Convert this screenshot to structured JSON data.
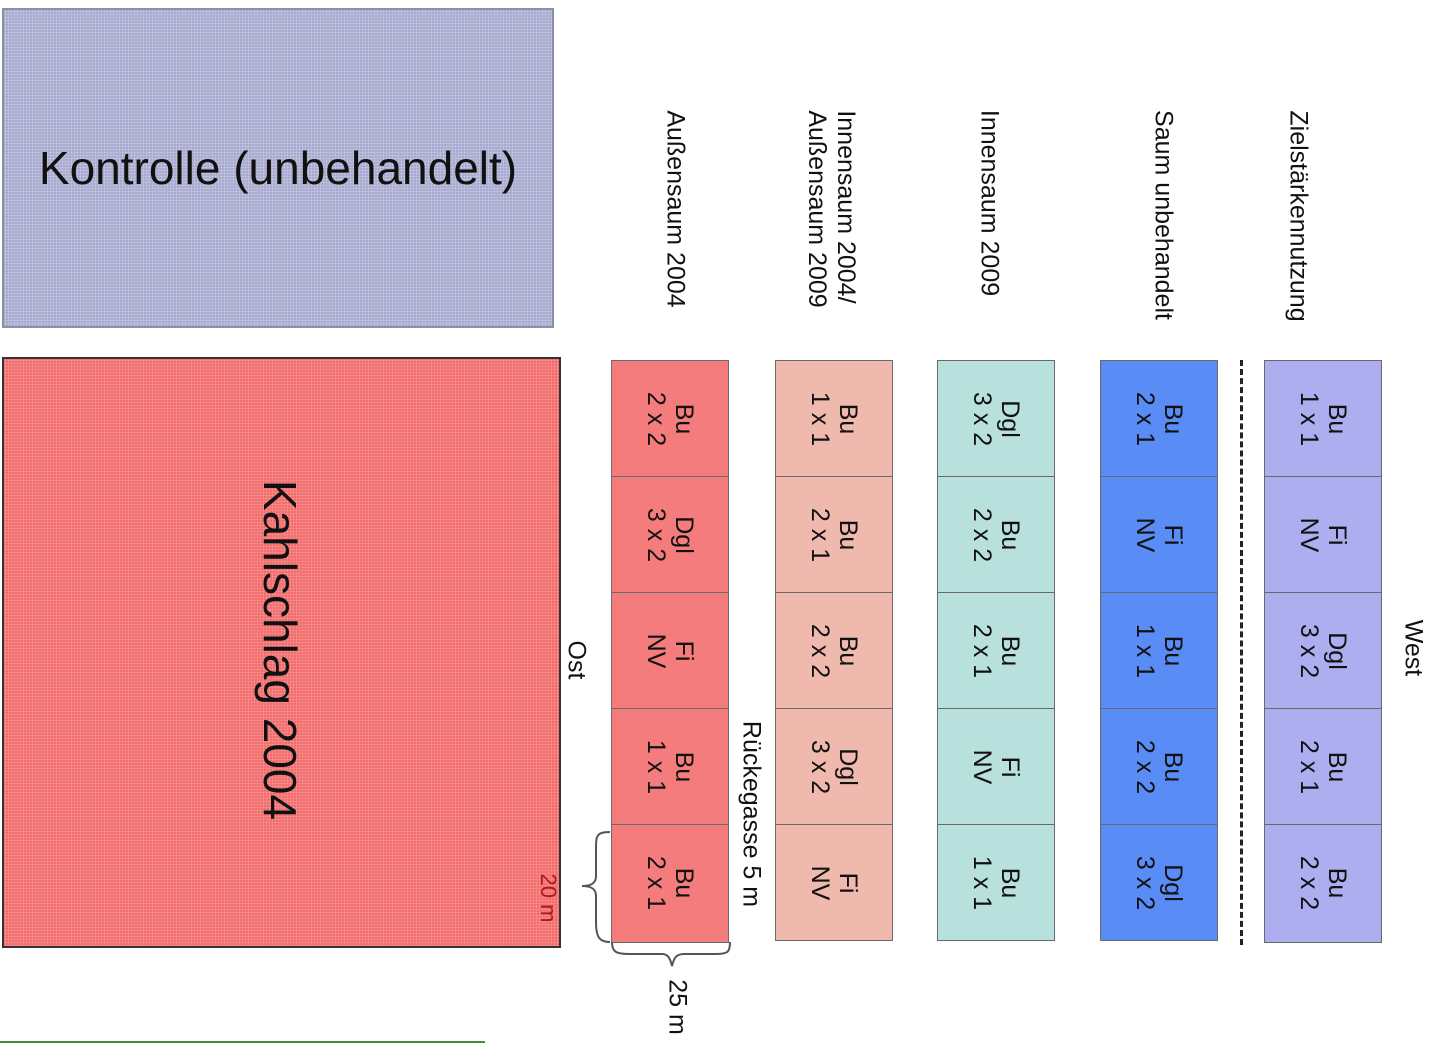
{
  "regions": {
    "kontrolle": "Kontrolle (unbehandelt)",
    "kahlschlag": "Kahlschlag 2004"
  },
  "columns": [
    {
      "header": [
        "Außensaum 2004"
      ],
      "color": "#f57c7c",
      "cells": [
        [
          "Bu",
          "2 x 2"
        ],
        [
          "Dgl",
          "3 x 2"
        ],
        [
          "Fi",
          "NV"
        ],
        [
          "Bu",
          "1 x 1"
        ],
        [
          "Bu",
          "2 x 1"
        ]
      ]
    },
    {
      "header": [
        "Innensaum 2004/",
        "Außensaum 2009"
      ],
      "color": "#f0b9ad",
      "cells": [
        [
          "Bu",
          "1 x 1"
        ],
        [
          "Bu",
          "2 x 1"
        ],
        [
          "Bu",
          "2 x 2"
        ],
        [
          "Dgl",
          "3 x 2"
        ],
        [
          "Fi",
          "NV"
        ]
      ]
    },
    {
      "header": [
        "Innensaum 2009"
      ],
      "color": "#b8e0dc",
      "cells": [
        [
          "Dgl",
          "3 x 2"
        ],
        [
          "Bu",
          "2 x 2"
        ],
        [
          "Bu",
          "2 x 1"
        ],
        [
          "Fi",
          "NV"
        ],
        [
          "Bu",
          "1 x 1"
        ]
      ]
    },
    {
      "header": [
        "Saum unbehandelt"
      ],
      "color": "#5a8cf5",
      "cells": [
        [
          "Bu",
          "2 x 1"
        ],
        [
          "Fi",
          "NV"
        ],
        [
          "Bu",
          "1 x 1"
        ],
        [
          "Bu",
          "2 x 2"
        ],
        [
          "Dgl",
          "3 x 2"
        ]
      ]
    },
    {
      "header": [
        "Zielstärkennutzung"
      ],
      "color": "#acaef0",
      "cells": [
        [
          "Bu",
          "1 x 1"
        ],
        [
          "Fi",
          "NV"
        ],
        [
          "Dgl",
          "3 x 2"
        ],
        [
          "Bu",
          "2 x 1"
        ],
        [
          "Bu",
          "2 x 2"
        ]
      ]
    }
  ],
  "labels": {
    "ost": "Ost",
    "west": "West",
    "rueckegasse": "Rückegasse 5 m",
    "width": "25 m",
    "depth": "20 m"
  }
}
